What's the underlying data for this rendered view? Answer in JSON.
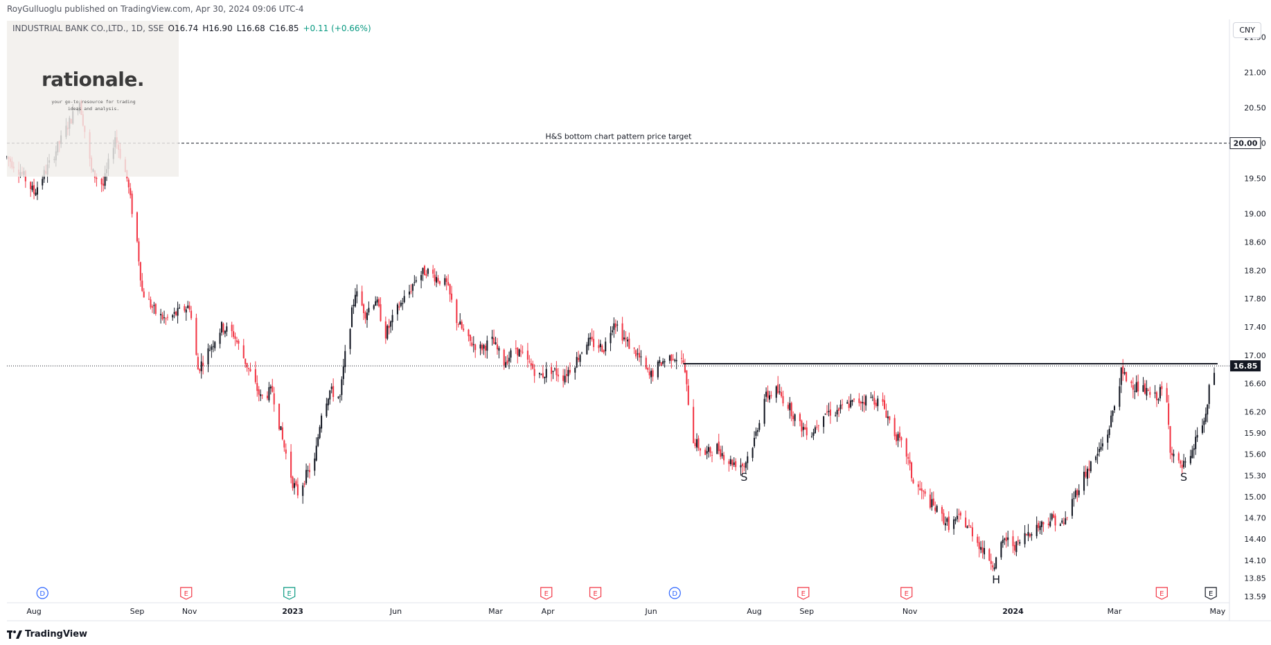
{
  "header": {
    "publisher": "RoyGulluoglu published on TradingView.com, Apr 30, 2024 09:06 UTC-4"
  },
  "legend": {
    "symbol": "INDUSTRIAL BANK CO.,LTD., 1D, SSE",
    "open": "O16.74",
    "high": "H16.90",
    "low": "L16.68",
    "close": "C16.85",
    "change": "+0.11 (+0.66%)"
  },
  "currency_button": "CNY",
  "watermark": {
    "title": "rationale.",
    "subtitle": "your go-to resource for trading ideas and analysis."
  },
  "footer": {
    "brand": "TradingView",
    "logo": "tv-logo-icon"
  },
  "colors": {
    "up": "#131722",
    "down": "#f23645",
    "accent_blue": "#2962ff",
    "earnings": "#f23645",
    "dividend_green": "#089981"
  },
  "chart_data": {
    "type": "candlestick",
    "title": "",
    "ylim": [
      13.5,
      21.75
    ],
    "y_ticks": [
      "21.50",
      "21.00",
      "20.50",
      "20.00",
      "19.50",
      "19.00",
      "18.60",
      "18.20",
      "17.80",
      "17.40",
      "17.00",
      "16.60",
      "16.20",
      "15.90",
      "15.60",
      "15.30",
      "15.00",
      "14.70",
      "14.40",
      "14.10",
      "13.85",
      "13.59"
    ],
    "x_labels": [
      "Jun",
      "Aug",
      "Sep",
      "Nov",
      "2023",
      "Mar",
      "Apr",
      "Jun",
      "Aug",
      "Sep",
      "Nov",
      "2024",
      "Mar",
      "May"
    ],
    "x_bold": [
      "2023",
      "2024"
    ],
    "x_span": [
      "2022-05-16",
      "2024-05-08"
    ],
    "last_price": "16.85",
    "target_price": "20.00",
    "target_label": "H&S bottom chart pattern price target",
    "neckline": {
      "price": 16.88,
      "from": "2023-06-20",
      "to": "2024-05-01"
    },
    "pattern_labels": [
      {
        "text": "S",
        "date": "2023-07-26",
        "price": 15.4
      },
      {
        "text": "H",
        "date": "2023-12-22",
        "price": 13.95
      },
      {
        "text": "S",
        "date": "2024-04-11",
        "price": 15.4
      }
    ],
    "event_markers": [
      {
        "type": "D",
        "date": "2022-06-06"
      },
      {
        "type": "E",
        "date": "2022-08-30"
      },
      {
        "type": "E",
        "date": "2022-10-30",
        "color": "green"
      },
      {
        "type": "E",
        "date": "2023-03-31"
      },
      {
        "type": "E",
        "date": "2023-04-29"
      },
      {
        "type": "D",
        "date": "2023-06-15"
      },
      {
        "type": "E",
        "date": "2023-08-30"
      },
      {
        "type": "E",
        "date": "2023-10-30"
      },
      {
        "type": "E",
        "date": "2024-03-29"
      },
      {
        "type": "E",
        "date": "2024-04-27",
        "color": "neutral"
      }
    ],
    "price_path": [
      [
        "2022-05-16",
        19.8
      ],
      [
        "2022-05-24",
        19.6
      ],
      [
        "2022-06-01",
        19.3
      ],
      [
        "2022-06-10",
        19.7
      ],
      [
        "2022-06-20",
        20.2
      ],
      [
        "2022-06-28",
        20.6
      ],
      [
        "2022-07-05",
        19.6
      ],
      [
        "2022-07-12",
        19.4
      ],
      [
        "2022-07-19",
        20.1
      ],
      [
        "2022-07-26",
        19.5
      ],
      [
        "2022-08-01",
        18.6
      ],
      [
        "2022-08-04",
        17.9
      ],
      [
        "2022-08-12",
        17.6
      ],
      [
        "2022-08-18",
        17.5
      ],
      [
        "2022-08-25",
        17.6
      ],
      [
        "2022-09-01",
        17.7
      ],
      [
        "2022-09-06",
        16.8
      ],
      [
        "2022-09-13",
        17.1
      ],
      [
        "2022-09-20",
        17.4
      ],
      [
        "2022-09-27",
        17.3
      ],
      [
        "2022-10-06",
        16.8
      ],
      [
        "2022-10-13",
        16.4
      ],
      [
        "2022-10-20",
        16.5
      ],
      [
        "2022-10-26",
        15.8
      ],
      [
        "2022-11-01",
        15.2
      ],
      [
        "2022-11-04",
        15.05
      ],
      [
        "2022-11-09",
        15.3
      ],
      [
        "2022-11-14",
        15.5
      ],
      [
        "2022-11-18",
        16.2
      ],
      [
        "2022-11-23",
        16.5
      ],
      [
        "2022-11-29",
        16.4
      ],
      [
        "2022-12-02",
        17.0
      ],
      [
        "2022-12-08",
        17.9
      ],
      [
        "2022-12-14",
        17.6
      ],
      [
        "2022-12-20",
        17.8
      ],
      [
        "2022-12-26",
        17.3
      ],
      [
        "2023-01-03",
        17.7
      ],
      [
        "2023-01-09",
        17.9
      ],
      [
        "2023-01-13",
        18.1
      ],
      [
        "2023-01-19",
        18.2
      ],
      [
        "2023-01-31",
        18.0
      ],
      [
        "2023-02-06",
        17.5
      ],
      [
        "2023-02-13",
        17.2
      ],
      [
        "2023-02-20",
        17.1
      ],
      [
        "2023-02-27",
        17.2
      ],
      [
        "2023-03-06",
        16.9
      ],
      [
        "2023-03-13",
        17.1
      ],
      [
        "2023-03-20",
        16.9
      ],
      [
        "2023-03-27",
        16.7
      ],
      [
        "2023-04-03",
        16.8
      ],
      [
        "2023-04-10",
        16.7
      ],
      [
        "2023-04-17",
        16.9
      ],
      [
        "2023-04-24",
        17.2
      ],
      [
        "2023-05-04",
        17.1
      ],
      [
        "2023-05-10",
        17.5
      ],
      [
        "2023-05-17",
        17.2
      ],
      [
        "2023-05-24",
        17.0
      ],
      [
        "2023-05-31",
        16.7
      ],
      [
        "2023-06-07",
        16.9
      ],
      [
        "2023-06-14",
        17.0
      ],
      [
        "2023-06-20",
        16.9
      ],
      [
        "2023-06-26",
        15.8
      ],
      [
        "2023-07-03",
        15.6
      ],
      [
        "2023-07-10",
        15.7
      ],
      [
        "2023-07-17",
        15.5
      ],
      [
        "2023-07-26",
        15.45
      ],
      [
        "2023-08-01",
        15.8
      ],
      [
        "2023-08-07",
        16.4
      ],
      [
        "2023-08-14",
        16.5
      ],
      [
        "2023-08-21",
        16.3
      ],
      [
        "2023-08-28",
        16.0
      ],
      [
        "2023-09-04",
        15.9
      ],
      [
        "2023-09-11",
        16.2
      ],
      [
        "2023-09-18",
        16.2
      ],
      [
        "2023-09-25",
        16.3
      ],
      [
        "2023-10-09",
        16.4
      ],
      [
        "2023-10-16",
        16.3
      ],
      [
        "2023-10-23",
        15.9
      ],
      [
        "2023-10-30",
        15.6
      ],
      [
        "2023-11-03",
        15.2
      ],
      [
        "2023-11-10",
        15.0
      ],
      [
        "2023-11-17",
        14.8
      ],
      [
        "2023-11-24",
        14.6
      ],
      [
        "2023-12-01",
        14.7
      ],
      [
        "2023-12-08",
        14.5
      ],
      [
        "2023-12-15",
        14.2
      ],
      [
        "2023-12-21",
        14.05
      ],
      [
        "2023-12-27",
        14.4
      ],
      [
        "2024-01-03",
        14.3
      ],
      [
        "2024-01-10",
        14.5
      ],
      [
        "2024-01-17",
        14.6
      ],
      [
        "2024-01-24",
        14.7
      ],
      [
        "2024-01-31",
        14.6
      ],
      [
        "2024-02-06",
        15.0
      ],
      [
        "2024-02-12",
        15.3
      ],
      [
        "2024-02-20",
        15.6
      ],
      [
        "2024-02-26",
        15.9
      ],
      [
        "2024-03-01",
        16.3
      ],
      [
        "2024-03-05",
        16.75
      ],
      [
        "2024-03-11",
        16.6
      ],
      [
        "2024-03-18",
        16.5
      ],
      [
        "2024-03-25",
        16.4
      ],
      [
        "2024-03-29",
        16.5
      ],
      [
        "2024-04-01",
        16.3
      ],
      [
        "2024-04-03",
        15.7
      ],
      [
        "2024-04-09",
        15.4
      ],
      [
        "2024-04-15",
        15.5
      ],
      [
        "2024-04-19",
        15.9
      ],
      [
        "2024-04-24",
        16.1
      ],
      [
        "2024-04-26",
        16.5
      ],
      [
        "2024-04-30",
        16.85
      ]
    ]
  }
}
